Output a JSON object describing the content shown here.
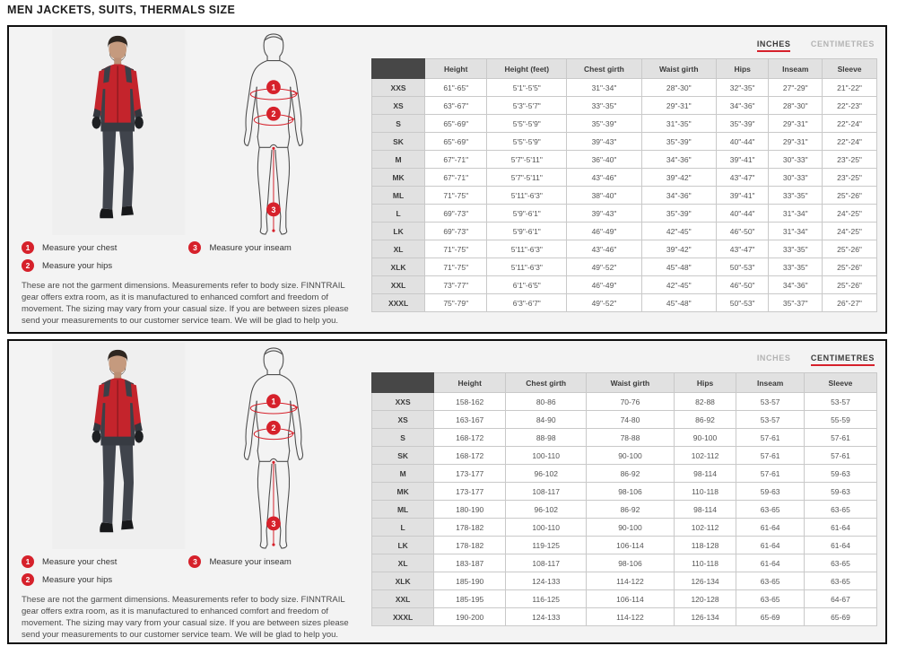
{
  "page_title": "MEN JACKETS, SUITS, THERMALS SIZE",
  "accent_color": "#d6212b",
  "units_tabs": {
    "inches": "INCHES",
    "centimetres": "CENTIMETRES"
  },
  "legend": {
    "chest": {
      "num": "1",
      "label": "Measure your chest"
    },
    "hips": {
      "num": "2",
      "label": "Measure your hips"
    },
    "inseam": {
      "num": "3",
      "label": "Measure your inseam"
    }
  },
  "note": "These are not the garment dimensions. Measurements refer to body size. FINNTRAIL gear offers extra room, as it is manufactured to enhanced comfort and freedom of movement. The sizing may vary from your casual size. If you are between sizes please send your measurements to our customer service team. We will be glad to help you.",
  "inches_table": {
    "headers": [
      "Height",
      "Height (feet)",
      "Chest girth",
      "Waist girth",
      "Hips",
      "Inseam",
      "Sleeve"
    ],
    "rows": [
      {
        "size": "XXS",
        "values": [
          "61\"-65\"",
          "5'1\"-5'5\"",
          "31\"-34\"",
          "28\"-30\"",
          "32\"-35\"",
          "27\"-29\"",
          "21\"-22\""
        ]
      },
      {
        "size": "XS",
        "values": [
          "63\"-67\"",
          "5'3\"-5'7\"",
          "33\"-35\"",
          "29\"-31\"",
          "34\"-36\"",
          "28\"-30\"",
          "22\"-23\""
        ]
      },
      {
        "size": "S",
        "values": [
          "65\"-69\"",
          "5'5\"-5'9\"",
          "35\"-39\"",
          "31\"-35\"",
          "35\"-39\"",
          "29\"-31\"",
          "22\"-24\""
        ]
      },
      {
        "size": "SK",
        "values": [
          "65\"-69\"",
          "5'5\"-5'9\"",
          "39\"-43\"",
          "35\"-39\"",
          "40\"-44\"",
          "29\"-31\"",
          "22\"-24\""
        ]
      },
      {
        "size": "M",
        "values": [
          "67\"-71\"",
          "5'7\"-5'11\"",
          "36\"-40\"",
          "34\"-36\"",
          "39\"-41\"",
          "30\"-33\"",
          "23\"-25\""
        ]
      },
      {
        "size": "MK",
        "values": [
          "67\"-71\"",
          "5'7\"-5'11\"",
          "43\"-46\"",
          "39\"-42\"",
          "43\"-47\"",
          "30\"-33\"",
          "23\"-25\""
        ]
      },
      {
        "size": "ML",
        "values": [
          "71\"-75\"",
          "5'11\"-6'3\"",
          "38\"-40\"",
          "34\"-36\"",
          "39\"-41\"",
          "33\"-35\"",
          "25\"-26\""
        ]
      },
      {
        "size": "L",
        "values": [
          "69\"-73\"",
          "5'9\"-6'1\"",
          "39\"-43\"",
          "35\"-39\"",
          "40\"-44\"",
          "31\"-34\"",
          "24\"-25\""
        ]
      },
      {
        "size": "LK",
        "values": [
          "69\"-73\"",
          "5'9\"-6'1\"",
          "46\"-49\"",
          "42\"-45\"",
          "46\"-50\"",
          "31\"-34\"",
          "24\"-25\""
        ]
      },
      {
        "size": "XL",
        "values": [
          "71\"-75\"",
          "5'11\"-6'3\"",
          "43\"-46\"",
          "39\"-42\"",
          "43\"-47\"",
          "33\"-35\"",
          "25\"-26\""
        ]
      },
      {
        "size": "XLK",
        "values": [
          "71\"-75\"",
          "5'11\"-6'3\"",
          "49\"-52\"",
          "45\"-48\"",
          "50\"-53\"",
          "33\"-35\"",
          "25\"-26\""
        ]
      },
      {
        "size": "XXL",
        "values": [
          "73\"-77\"",
          "6'1\"-6'5\"",
          "46\"-49\"",
          "42\"-45\"",
          "46\"-50\"",
          "34\"-36\"",
          "25\"-26\""
        ]
      },
      {
        "size": "XXXL",
        "values": [
          "75\"-79\"",
          "6'3\"-6'7\"",
          "49\"-52\"",
          "45\"-48\"",
          "50\"-53\"",
          "35\"-37\"",
          "26\"-27\""
        ]
      }
    ]
  },
  "cm_table": {
    "headers": [
      "Height",
      "Chest girth",
      "Waist girth",
      "Hips",
      "Inseam",
      "Sleeve"
    ],
    "rows": [
      {
        "size": "XXS",
        "values": [
          "158-162",
          "80-86",
          "70-76",
          "82-88",
          "53-57",
          "53-57"
        ]
      },
      {
        "size": "XS",
        "values": [
          "163-167",
          "84-90",
          "74-80",
          "86-92",
          "53-57",
          "55-59"
        ]
      },
      {
        "size": "S",
        "values": [
          "168-172",
          "88-98",
          "78-88",
          "90-100",
          "57-61",
          "57-61"
        ]
      },
      {
        "size": "SK",
        "values": [
          "168-172",
          "100-110",
          "90-100",
          "102-112",
          "57-61",
          "57-61"
        ]
      },
      {
        "size": "M",
        "values": [
          "173-177",
          "96-102",
          "86-92",
          "98-114",
          "57-61",
          "59-63"
        ]
      },
      {
        "size": "MK",
        "values": [
          "173-177",
          "108-117",
          "98-106",
          "110-118",
          "59-63",
          "59-63"
        ]
      },
      {
        "size": "ML",
        "values": [
          "180-190",
          "96-102",
          "86-92",
          "98-114",
          "63-65",
          "63-65"
        ]
      },
      {
        "size": "L",
        "values": [
          "178-182",
          "100-110",
          "90-100",
          "102-112",
          "61-64",
          "61-64"
        ]
      },
      {
        "size": "LK",
        "values": [
          "178-182",
          "119-125",
          "106-114",
          "118-128",
          "61-64",
          "61-64"
        ]
      },
      {
        "size": "XL",
        "values": [
          "183-187",
          "108-117",
          "98-106",
          "110-118",
          "61-64",
          "63-65"
        ]
      },
      {
        "size": "XLK",
        "values": [
          "185-190",
          "124-133",
          "114-122",
          "126-134",
          "63-65",
          "63-65"
        ]
      },
      {
        "size": "XXL",
        "values": [
          "185-195",
          "116-125",
          "106-114",
          "120-128",
          "63-65",
          "64-67"
        ]
      },
      {
        "size": "XXXL",
        "values": [
          "190-200",
          "124-133",
          "114-122",
          "126-134",
          "65-69",
          "65-69"
        ]
      }
    ]
  }
}
